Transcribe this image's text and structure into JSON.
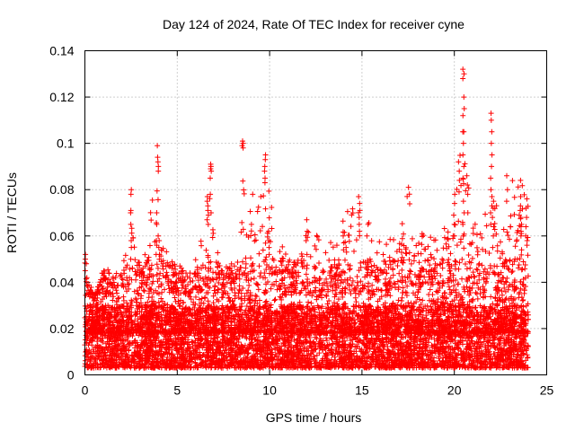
{
  "chart_data": {
    "type": "scatter",
    "title": "Day 124 of 2024, Rate Of TEC Index for receiver cyne",
    "xlabel": "GPS time / hours",
    "ylabel": "ROTI / TECUs",
    "xlim": [
      0,
      25
    ],
    "ylim": [
      0,
      0.14
    ],
    "x_ticks": [
      0,
      5,
      10,
      15,
      20,
      25
    ],
    "x_tick_labels": [
      "0",
      "5",
      "10",
      "15",
      "20",
      "25"
    ],
    "y_ticks": [
      0,
      0.02,
      0.04,
      0.06,
      0.08,
      0.1,
      0.12,
      0.14
    ],
    "y_tick_labels": [
      "0",
      "0.02",
      "0.04",
      "0.06",
      "0.08",
      "0.1",
      "0.12",
      "0.14"
    ],
    "grid": true,
    "marker": "plus",
    "color": "#ff0000",
    "data_range_x": [
      0,
      24
    ],
    "baseline_y_range": [
      0.003,
      0.03
    ],
    "envelope": [
      {
        "x": 0.0,
        "y": 0.051
      },
      {
        "x": 0.5,
        "y": 0.032
      },
      {
        "x": 1.0,
        "y": 0.047
      },
      {
        "x": 1.5,
        "y": 0.044
      },
      {
        "x": 2.0,
        "y": 0.049
      },
      {
        "x": 2.5,
        "y": 0.079
      },
      {
        "x": 3.0,
        "y": 0.045
      },
      {
        "x": 3.5,
        "y": 0.07
      },
      {
        "x": 3.9,
        "y": 0.099
      },
      {
        "x": 4.5,
        "y": 0.05
      },
      {
        "x": 5.0,
        "y": 0.048
      },
      {
        "x": 5.5,
        "y": 0.045
      },
      {
        "x": 6.0,
        "y": 0.05
      },
      {
        "x": 6.6,
        "y": 0.077
      },
      {
        "x": 6.8,
        "y": 0.091
      },
      {
        "x": 7.3,
        "y": 0.051
      },
      {
        "x": 7.8,
        "y": 0.048
      },
      {
        "x": 8.4,
        "y": 0.055
      },
      {
        "x": 8.6,
        "y": 0.101
      },
      {
        "x": 9.1,
        "y": 0.066
      },
      {
        "x": 9.4,
        "y": 0.078
      },
      {
        "x": 9.8,
        "y": 0.095
      },
      {
        "x": 10.5,
        "y": 0.058
      },
      {
        "x": 11.0,
        "y": 0.055
      },
      {
        "x": 11.5,
        "y": 0.048
      },
      {
        "x": 12.0,
        "y": 0.067
      },
      {
        "x": 12.5,
        "y": 0.063
      },
      {
        "x": 13.0,
        "y": 0.055
      },
      {
        "x": 13.5,
        "y": 0.06
      },
      {
        "x": 14.0,
        "y": 0.07
      },
      {
        "x": 14.5,
        "y": 0.072
      },
      {
        "x": 14.9,
        "y": 0.077
      },
      {
        "x": 15.5,
        "y": 0.065
      },
      {
        "x": 16.0,
        "y": 0.057
      },
      {
        "x": 16.5,
        "y": 0.06
      },
      {
        "x": 17.0,
        "y": 0.063
      },
      {
        "x": 17.5,
        "y": 0.081
      },
      {
        "x": 18.0,
        "y": 0.064
      },
      {
        "x": 18.5,
        "y": 0.062
      },
      {
        "x": 19.0,
        "y": 0.06
      },
      {
        "x": 19.5,
        "y": 0.066
      },
      {
        "x": 20.0,
        "y": 0.078
      },
      {
        "x": 20.2,
        "y": 0.092
      },
      {
        "x": 20.5,
        "y": 0.132
      },
      {
        "x": 20.8,
        "y": 0.086
      },
      {
        "x": 21.3,
        "y": 0.06
      },
      {
        "x": 21.7,
        "y": 0.075
      },
      {
        "x": 22.0,
        "y": 0.113
      },
      {
        "x": 22.4,
        "y": 0.06
      },
      {
        "x": 22.8,
        "y": 0.075
      },
      {
        "x": 23.2,
        "y": 0.086
      },
      {
        "x": 23.6,
        "y": 0.084
      },
      {
        "x": 24.0,
        "y": 0.076
      }
    ],
    "spikes": [
      {
        "x": 0.05,
        "ys": [
          0.05,
          0.048,
          0.045,
          0.052
        ]
      },
      {
        "x": 2.5,
        "ys": [
          0.08,
          0.078,
          0.071,
          0.07,
          0.065,
          0.058,
          0.055,
          0.05
        ]
      },
      {
        "x": 3.85,
        "ys": [
          0.07,
          0.065,
          0.058,
          0.056,
          0.052
        ]
      },
      {
        "x": 3.95,
        "ys": [
          0.099,
          0.094,
          0.092,
          0.09,
          0.088
        ]
      },
      {
        "x": 4.0,
        "ys": [
          0.06,
          0.058,
          0.055,
          0.052,
          0.046
        ]
      },
      {
        "x": 6.65,
        "ys": [
          0.077,
          0.075,
          0.073,
          0.071,
          0.069,
          0.067,
          0.065
        ]
      },
      {
        "x": 6.8,
        "ys": [
          0.091,
          0.09,
          0.089,
          0.088,
          0.085,
          0.078,
          0.07
        ]
      },
      {
        "x": 8.55,
        "ys": [
          0.101,
          0.1,
          0.099,
          0.098
        ]
      },
      {
        "x": 9.05,
        "ys": [
          0.078,
          0.065
        ]
      },
      {
        "x": 9.75,
        "ys": [
          0.095,
          0.093,
          0.09,
          0.088,
          0.085,
          0.083
        ]
      },
      {
        "x": 9.95,
        "ys": [
          0.062,
          0.058,
          0.055,
          0.052
        ]
      },
      {
        "x": 12.0,
        "ys": [
          0.067,
          0.062,
          0.058,
          0.052
        ]
      },
      {
        "x": 14.0,
        "ys": [
          0.06,
          0.057,
          0.054
        ]
      },
      {
        "x": 14.85,
        "ys": [
          0.077,
          0.074,
          0.071,
          0.068,
          0.065,
          0.062
        ]
      },
      {
        "x": 15.3,
        "ys": [
          0.065,
          0.06
        ]
      },
      {
        "x": 17.5,
        "ys": [
          0.081
        ]
      },
      {
        "x": 20.0,
        "ys": [
          0.078,
          0.074,
          0.069,
          0.065,
          0.06
        ]
      },
      {
        "x": 20.25,
        "ys": [
          0.092,
          0.088,
          0.084,
          0.079
        ]
      },
      {
        "x": 20.5,
        "ys": [
          0.132,
          0.13,
          0.128,
          0.12,
          0.115,
          0.112,
          0.105,
          0.1,
          0.095,
          0.09,
          0.085,
          0.075,
          0.07,
          0.065,
          0.06
        ]
      },
      {
        "x": 20.7,
        "ys": [
          0.086,
          0.082,
          0.078,
          0.07
        ]
      },
      {
        "x": 22.0,
        "ys": [
          0.113,
          0.11,
          0.105,
          0.1,
          0.095,
          0.09,
          0.085,
          0.08,
          0.077,
          0.073,
          0.07,
          0.065
        ]
      },
      {
        "x": 22.1,
        "ys": [
          0.075,
          0.072,
          0.068,
          0.064,
          0.06,
          0.055
        ]
      },
      {
        "x": 22.85,
        "ys": [
          0.086,
          0.08,
          0.075
        ]
      },
      {
        "x": 23.6,
        "ys": [
          0.084,
          0.077,
          0.073,
          0.071,
          0.068,
          0.065,
          0.062,
          0.06
        ]
      },
      {
        "x": 23.9,
        "ys": [
          0.076,
          0.072,
          0.068,
          0.064,
          0.06,
          0.056
        ]
      }
    ]
  }
}
